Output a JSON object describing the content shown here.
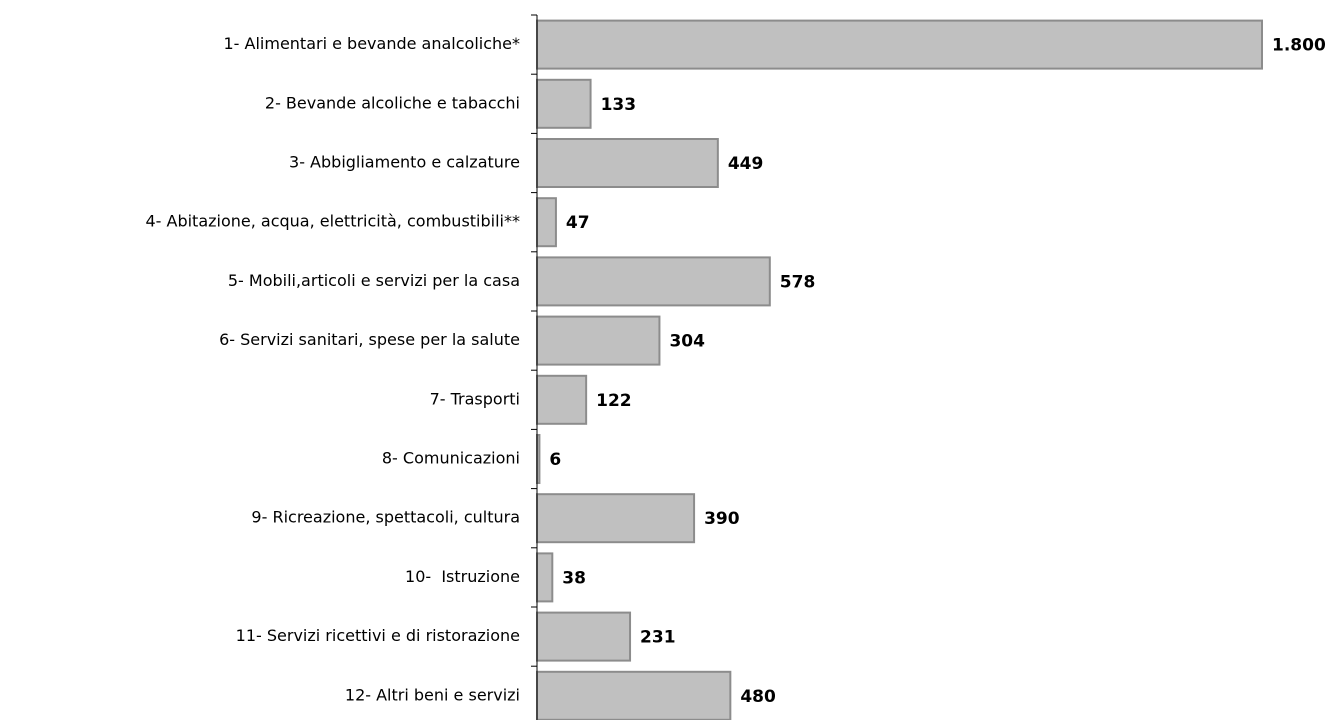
{
  "chart_data": {
    "type": "hbar",
    "categories": [
      "1- Alimentari e bevande analcoliche*",
      "2- Bevande alcoliche e tabacchi",
      "3- Abbigliamento e calzature",
      "4- Abitazione, acqua, elettricità, combustibili**",
      "5- Mobili,articoli e servizi per la casa",
      "6- Servizi sanitari, spese per la salute",
      "7- Trasporti",
      "8- Comunicazioni",
      "9- Ricreazione, spettacoli, cultura",
      "10-  Istruzione",
      "11- Servizi ricettivi e di ristorazione",
      "12- Altri beni e servizi"
    ],
    "values": [
      1800,
      133,
      449,
      47,
      578,
      304,
      122,
      6,
      390,
      38,
      231,
      480
    ],
    "value_labels": [
      "1.800",
      "133",
      "449",
      "47",
      "578",
      "304",
      "122",
      "6",
      "390",
      "38",
      "231",
      "480"
    ],
    "color": "#c0c0c0"
  }
}
